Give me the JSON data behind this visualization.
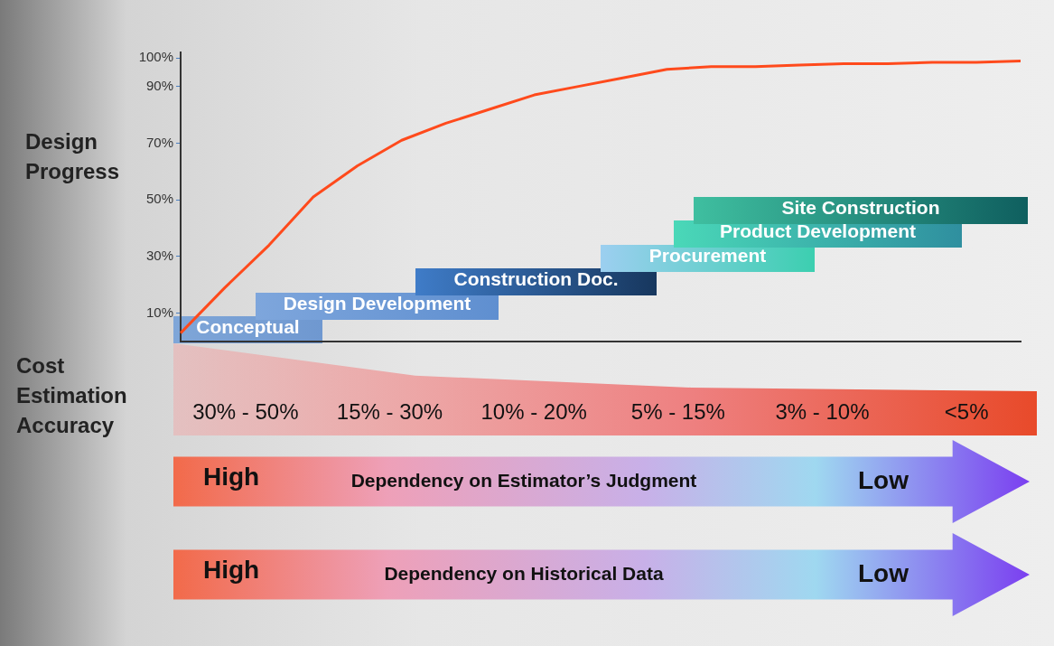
{
  "chart_data": [
    {
      "type": "line",
      "ylabel": "Design Progress",
      "categories": [
        null,
        null,
        null,
        null,
        null,
        null,
        null,
        null,
        null,
        null,
        null,
        null,
        null,
        null,
        null,
        null,
        null,
        null,
        null,
        null
      ],
      "ylim": [
        0,
        102
      ],
      "yticks": [
        {
          "value": 10,
          "label": "10%"
        },
        {
          "value": 30,
          "label": "30%"
        },
        {
          "value": 50,
          "label": "50%"
        },
        {
          "value": 70,
          "label": "70%"
        },
        {
          "value": 90,
          "label": "90%"
        },
        {
          "value": 100,
          "label": "100%"
        }
      ],
      "tick_labels": "y",
      "series": [
        {
          "color": "#ff4a1c",
          "values": [
            3,
            19,
            34,
            51,
            62,
            71,
            77,
            82,
            87,
            90,
            93,
            96,
            97,
            97,
            97.5,
            98,
            98,
            98.5,
            98.5,
            99
          ]
        }
      ],
      "annotations": [
        "Conceptual",
        "Design Development",
        "Construction Doc.",
        "Procurement",
        "Product Development",
        "Site Construction"
      ]
    },
    {
      "type": "other",
      "title": "Cost Estimation Accuracy",
      "annotations": [
        "30% - 50%",
        "15% - 30%",
        "10% - 20%",
        "5% - 15%",
        "3% - 10%",
        "<5%",
        "High",
        "Dependency on Estimator’s Judgment",
        "Low",
        "High",
        "Dependency on Historical Data",
        "Low"
      ]
    }
  ]
}
